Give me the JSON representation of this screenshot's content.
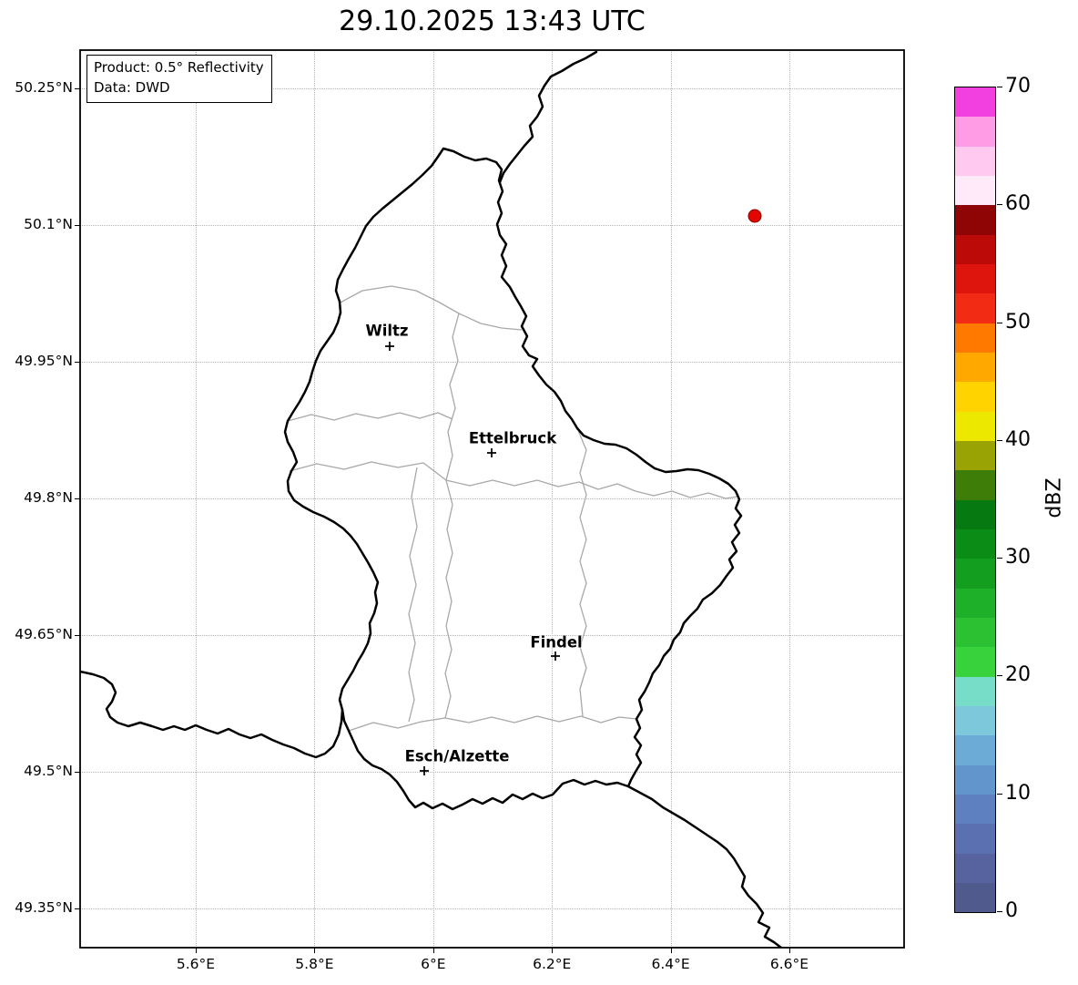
{
  "title": "29.10.2025 13:43 UTC",
  "info_box": {
    "product_line": "Product: 0.5° Reflectivity",
    "data_line": "Data: DWD"
  },
  "axes": {
    "x_ticks": [
      "5.6°E",
      "5.8°E",
      "6°E",
      "6.2°E",
      "6.4°E",
      "6.6°E"
    ],
    "y_ticks": [
      "50.25°N",
      "50.1°N",
      "49.95°N",
      "49.8°N",
      "49.65°N",
      "49.5°N",
      "49.35°N"
    ]
  },
  "map": {
    "cities": [
      {
        "name": "Wiltz"
      },
      {
        "name": "Ettelbruck"
      },
      {
        "name": "Findel"
      },
      {
        "name": "Esch/Alzette"
      }
    ],
    "radar_point_color": "#e10600",
    "border_color": "#000000",
    "district_border_color": "#a8a8a8"
  },
  "colorbar": {
    "label": "dBZ",
    "min": 0,
    "max": 70,
    "ticks": [
      0,
      10,
      20,
      30,
      40,
      50,
      60,
      70
    ],
    "colors_ascending": [
      "#515a8c",
      "#56639f",
      "#5a70b0",
      "#5e7fc0",
      "#6295cb",
      "#6cabd5",
      "#7dc8da",
      "#77dcc8",
      "#37d23c",
      "#2bc132",
      "#1fb02a",
      "#149e20",
      "#0b8c17",
      "#067a10",
      "#3d7d08",
      "#9aa304",
      "#ece800",
      "#ffd300",
      "#ffa800",
      "#ff7900",
      "#f22b14",
      "#de150c",
      "#bc0a08",
      "#8f0405",
      "#ffeaf9",
      "#ffc9f0",
      "#ff9ce5",
      "#f23fe0"
    ]
  }
}
